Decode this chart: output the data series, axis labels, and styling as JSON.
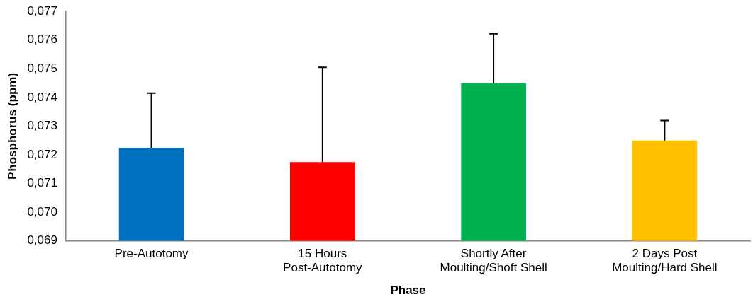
{
  "chart_data": {
    "type": "bar",
    "xlabel": "Phase",
    "ylabel": "Phosphorus (ppm)",
    "categories": [
      "Pre-Autotomy",
      "15 Hours Post-Autotomy",
      "Shortly After Moulting/Shoft Shell",
      "2 Days Post Moulting/Hard Shell"
    ],
    "values": [
      0.07225,
      0.07175,
      0.0745,
      0.0725
    ],
    "colors": [
      "#0070c0",
      "#ff0000",
      "#00b050",
      "#ffc000"
    ],
    "errors": [
      [
        0.07225,
        0.07415
      ],
      [
        0.07175,
        0.07505
      ],
      [
        0.0745,
        0.07622
      ],
      [
        0.0725,
        0.0732
      ]
    ],
    "ylim": [
      0.069,
      0.077
    ],
    "yticks": [
      {
        "value": 0.069,
        "label": "0,069"
      },
      {
        "value": 0.07,
        "label": "0,070"
      },
      {
        "value": 0.071,
        "label": "0,071"
      },
      {
        "value": 0.072,
        "label": "0,072"
      },
      {
        "value": 0.073,
        "label": "0,073"
      },
      {
        "value": 0.074,
        "label": "0,074"
      },
      {
        "value": 0.075,
        "label": "0,075"
      },
      {
        "value": 0.076,
        "label": "0,076"
      },
      {
        "value": 0.077,
        "label": "0,077"
      }
    ],
    "grid": false,
    "legend": false
  }
}
